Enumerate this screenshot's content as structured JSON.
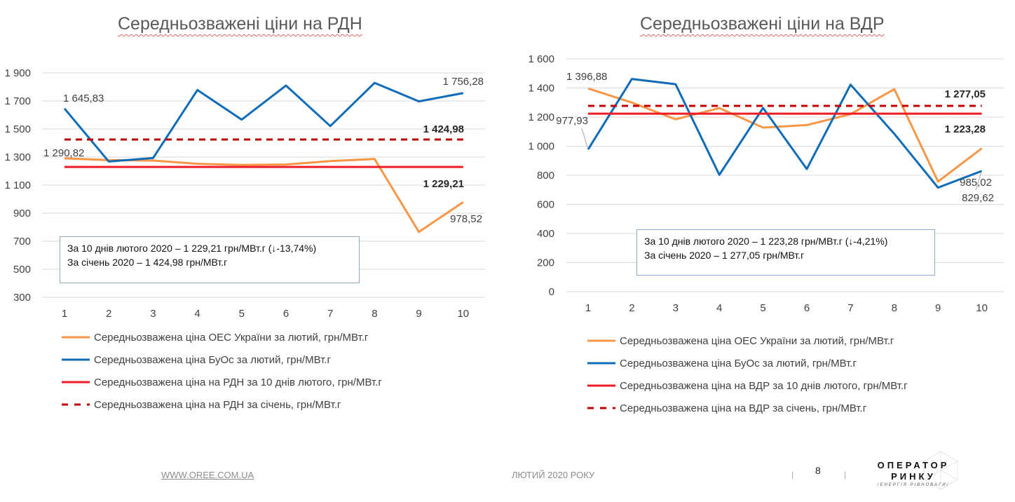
{
  "chart_data": [
    {
      "type": "line",
      "title": "Середньозважені ціни на РДН",
      "categories": [
        "1",
        "2",
        "3",
        "4",
        "5",
        "6",
        "7",
        "8",
        "9",
        "10"
      ],
      "ylim": [
        300,
        1900
      ],
      "yticks": [
        "300",
        "500",
        "700",
        "900",
        "1 100",
        "1 300",
        "1 500",
        "1 700",
        "1 900"
      ],
      "ytick_values": [
        300,
        500,
        700,
        900,
        1100,
        1300,
        1500,
        1700,
        1900
      ],
      "grid": true,
      "legend_position": "bottom",
      "series": [
        {
          "name": "Середньозважена ціна ОЕС України за лютий, грн/МВт.г",
          "color": "#f79646",
          "style": "solid",
          "values": [
            1290.82,
            1278,
            1275,
            1252,
            1244,
            1247,
            1271,
            1286,
            766,
            978.52
          ]
        },
        {
          "name": "Середньозважена ціна БуОс за лютий, грн/МВт.г",
          "color": "#0f6cb8",
          "style": "solid",
          "values": [
            1645.83,
            1268,
            1293,
            1778,
            1567,
            1810,
            1521,
            1829,
            1697,
            1756.28
          ]
        },
        {
          "name": "Середньозважена ціна на РДН за 10 днів лютого, грн/МВт.г",
          "color": "#ee1c25",
          "style": "solid",
          "values": [
            1229.21,
            1229.21,
            1229.21,
            1229.21,
            1229.21,
            1229.21,
            1229.21,
            1229.21,
            1229.21,
            1229.21
          ]
        },
        {
          "name": "Середньозважена ціна на РДН за січень, грн/МВт.г",
          "color": "#c00000",
          "style": "dashed",
          "values": [
            1424.98,
            1424.98,
            1424.98,
            1424.98,
            1424.98,
            1424.98,
            1424.98,
            1424.98,
            1424.98,
            1424.98
          ]
        }
      ],
      "annotations": [
        "1 645,83",
        "1 756,28",
        "1 424,98",
        "1 290,82",
        "1 229,21",
        "978,52"
      ],
      "note_lines": [
        "За 10 днів лютого 2020 – 1 229,21 грн/МВт.г (↓-13,74%)",
        "За січень 2020 – 1 424,98 грн/МВт.г"
      ]
    },
    {
      "type": "line",
      "title": "Середньозважені ціни на ВДР",
      "categories": [
        "1",
        "2",
        "3",
        "4",
        "5",
        "6",
        "7",
        "8",
        "9",
        "10"
      ],
      "ylim": [
        0,
        1600
      ],
      "yticks": [
        "0",
        "200",
        "400",
        "600",
        "800",
        "1 000",
        "1 200",
        "1 400",
        "1 600"
      ],
      "ytick_values": [
        0,
        200,
        400,
        600,
        800,
        1000,
        1200,
        1400,
        1600
      ],
      "grid": true,
      "legend_position": "bottom",
      "series": [
        {
          "name": "Середньозважена ціна ОЕС України за лютий, грн/МВт.г",
          "color": "#f79646",
          "style": "solid",
          "values": [
            1396.88,
            1300,
            1185,
            1262,
            1128,
            1145,
            1220,
            1392,
            757,
            985.02
          ]
        },
        {
          "name": "Середньозважена ціна БуОс за лютий, грн/МВт.г",
          "color": "#0f6cb8",
          "style": "solid",
          "values": [
            977.93,
            1462,
            1426,
            803,
            1263,
            843,
            1423,
            1085,
            715,
            829.62
          ]
        },
        {
          "name": "Середньозважена ціна на ВДР за 10 днів лютого, грн/МВт.г",
          "color": "#ee1c25",
          "style": "solid",
          "values": [
            1223.28,
            1223.28,
            1223.28,
            1223.28,
            1223.28,
            1223.28,
            1223.28,
            1223.28,
            1223.28,
            1223.28
          ]
        },
        {
          "name": "Середньозважена ціна на ВДР за січень, грн/МВт.г",
          "color": "#c00000",
          "style": "dashed",
          "values": [
            1277.05,
            1277.05,
            1277.05,
            1277.05,
            1277.05,
            1277.05,
            1277.05,
            1277.05,
            1277.05,
            1277.05
          ]
        }
      ],
      "annotations": [
        "1 396,88",
        "977,93",
        "1 277,05",
        "1 223,28",
        "985,02",
        "829,62"
      ],
      "note_lines": [
        "За 10 днів лютого 2020 – 1 223,28 грн/МВт.г (↓-4,21%)",
        "За січень 2020 – 1 277,05 грн/МВт.г"
      ]
    }
  ],
  "footer": {
    "website": "WWW.OREE.COM.UA",
    "period": "ЛЮТИЙ 2020 РОКУ",
    "page_number": "8",
    "logo_line1": "ОПЕРАТОР",
    "logo_line2": "РИНКУ",
    "logo_line3": "/ЕНЕРГІЯ РІВНОВАГИ/"
  }
}
